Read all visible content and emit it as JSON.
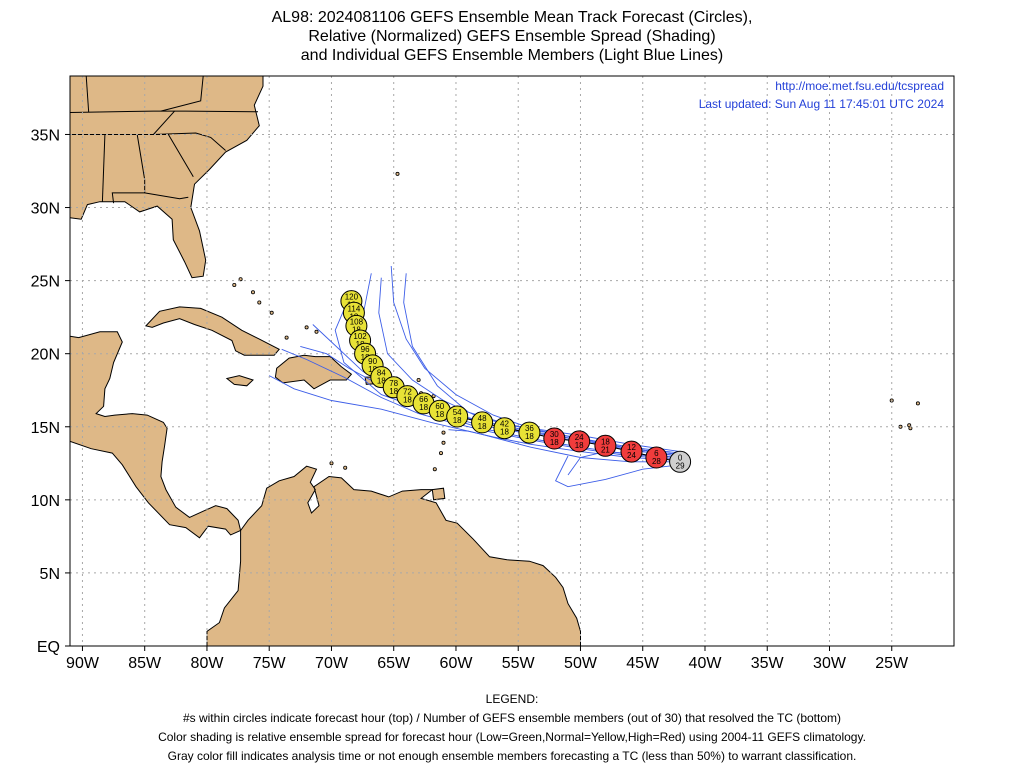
{
  "title": {
    "line1": "AL98: 2024081106 GEFS Ensemble Mean Track Forecast (Circles),",
    "line2": "Relative (Normalized) GEFS Ensemble Spread (Shading)",
    "line3": "and Individual GEFS Ensemble Members (Light Blue Lines)"
  },
  "source": {
    "url": "http://moe.met.fsu.edu/tcspread",
    "updated": "Last updated: Sun Aug 11 17:45:01 UTC 2024"
  },
  "map": {
    "lon_range": [
      -91,
      -20
    ],
    "lat_range": [
      0,
      39
    ],
    "lon_ticks": [
      {
        "value": -90,
        "label": "90W"
      },
      {
        "value": -85,
        "label": "85W"
      },
      {
        "value": -80,
        "label": "80W"
      },
      {
        "value": -75,
        "label": "75W"
      },
      {
        "value": -70,
        "label": "70W"
      },
      {
        "value": -65,
        "label": "65W"
      },
      {
        "value": -60,
        "label": "60W"
      },
      {
        "value": -55,
        "label": "55W"
      },
      {
        "value": -50,
        "label": "50W"
      },
      {
        "value": -45,
        "label": "45W"
      },
      {
        "value": -40,
        "label": "40W"
      },
      {
        "value": -35,
        "label": "35W"
      },
      {
        "value": -30,
        "label": "30W"
      },
      {
        "value": -25,
        "label": "25W"
      }
    ],
    "lat_ticks": [
      {
        "value": 0,
        "label": "EQ"
      },
      {
        "value": 5,
        "label": "5N"
      },
      {
        "value": 10,
        "label": "10N"
      },
      {
        "value": 15,
        "label": "15N"
      },
      {
        "value": 20,
        "label": "20N"
      },
      {
        "value": 25,
        "label": "25N"
      },
      {
        "value": 30,
        "label": "30N"
      },
      {
        "value": 35,
        "label": "35N"
      }
    ],
    "land_color": "#deb887",
    "water_color": "#ffffff",
    "member_color": "#3d5ee8",
    "spread_colors": {
      "normal": "#e8e236",
      "high": "#f03c3c",
      "analysis": "#cfcfcf"
    }
  },
  "track": [
    {
      "hour": "0",
      "members": "29",
      "lon": -42.0,
      "lat": 12.6,
      "spread": "analysis"
    },
    {
      "hour": "6",
      "members": "28",
      "lon": -43.9,
      "lat": 12.9,
      "spread": "high"
    },
    {
      "hour": "12",
      "members": "24",
      "lon": -45.9,
      "lat": 13.3,
      "spread": "high"
    },
    {
      "hour": "18",
      "members": "21",
      "lon": -48.0,
      "lat": 13.7,
      "spread": "high"
    },
    {
      "hour": "24",
      "members": "18",
      "lon": -50.1,
      "lat": 14.0,
      "spread": "high"
    },
    {
      "hour": "30",
      "members": "18",
      "lon": -52.1,
      "lat": 14.2,
      "spread": "high"
    },
    {
      "hour": "36",
      "members": "18",
      "lon": -54.1,
      "lat": 14.6,
      "spread": "normal"
    },
    {
      "hour": "42",
      "members": "18",
      "lon": -56.1,
      "lat": 14.9,
      "spread": "normal"
    },
    {
      "hour": "48",
      "members": "18",
      "lon": -57.9,
      "lat": 15.3,
      "spread": "normal"
    },
    {
      "hour": "54",
      "members": "18",
      "lon": -59.9,
      "lat": 15.7,
      "spread": "normal"
    },
    {
      "hour": "60",
      "members": "18",
      "lon": -61.3,
      "lat": 16.1,
      "spread": "normal"
    },
    {
      "hour": "66",
      "members": "18",
      "lon": -62.6,
      "lat": 16.6,
      "spread": "normal"
    },
    {
      "hour": "72",
      "members": "18",
      "lon": -63.9,
      "lat": 17.1,
      "spread": "normal"
    },
    {
      "hour": "78",
      "members": "18",
      "lon": -65.0,
      "lat": 17.7,
      "spread": "normal"
    },
    {
      "hour": "84",
      "members": "18",
      "lon": -66.0,
      "lat": 18.4,
      "spread": "normal"
    },
    {
      "hour": "90",
      "members": "18",
      "lon": -66.7,
      "lat": 19.2,
      "spread": "normal"
    },
    {
      "hour": "96",
      "members": "18",
      "lon": -67.3,
      "lat": 20.0,
      "spread": "normal"
    },
    {
      "hour": "102",
      "members": "18",
      "lon": -67.7,
      "lat": 20.9,
      "spread": "normal"
    },
    {
      "hour": "108",
      "members": "18",
      "lon": -68.0,
      "lat": 21.9,
      "spread": "normal"
    },
    {
      "hour": "114",
      "members": "18",
      "lon": -68.2,
      "lat": 22.8,
      "spread": "normal"
    },
    {
      "hour": "120",
      "members": "18",
      "lon": -68.4,
      "lat": 23.6,
      "spread": "normal"
    }
  ],
  "legend": {
    "heading": "LEGEND:",
    "line1": "#s within circles indicate forecast hour (top) / Number of GEFS ensemble members (out of 30) that resolved the TC (bottom)",
    "line2": "Color shading is relative ensemble spread for forecast hour (Low=Green,Normal=Yellow,High=Red) using 2004-11 GEFS climatology.",
    "line3": "Gray color fill indicates analysis time or not enough ensemble members forecasting a TC (less than 50%) to warrant classification."
  }
}
